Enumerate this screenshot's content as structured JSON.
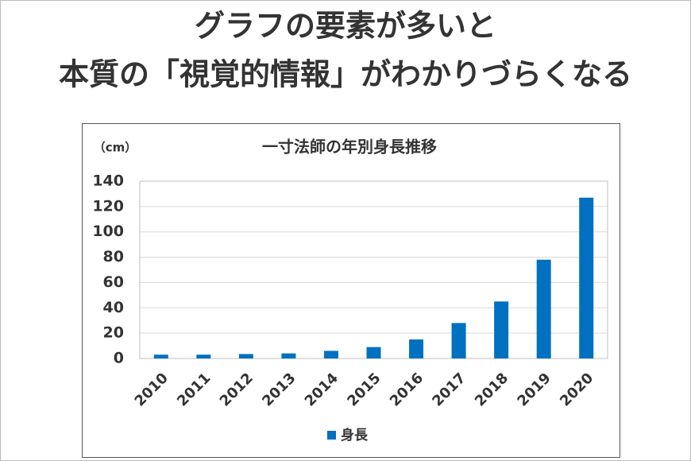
{
  "headline": [
    "グラフの要素が多いと",
    "本質の「視覚的情報」がわかりづらくなる"
  ],
  "chart_data": {
    "type": "bar",
    "title": "一寸法師の年別身長推移",
    "y_label": "（cm）",
    "categories": [
      "2010",
      "2011",
      "2012",
      "2013",
      "2014",
      "2015",
      "2016",
      "2017",
      "2018",
      "2019",
      "2020"
    ],
    "series": [
      {
        "name": "身長",
        "color": "#0070c0",
        "values": [
          3,
          3,
          3.5,
          4,
          6,
          9,
          15,
          28,
          45,
          78,
          127
        ]
      }
    ],
    "ylim": [
      0,
      140
    ],
    "yticks": [
      0,
      20,
      40,
      60,
      80,
      100,
      120,
      140
    ],
    "grid": true,
    "legend": "bottom"
  }
}
